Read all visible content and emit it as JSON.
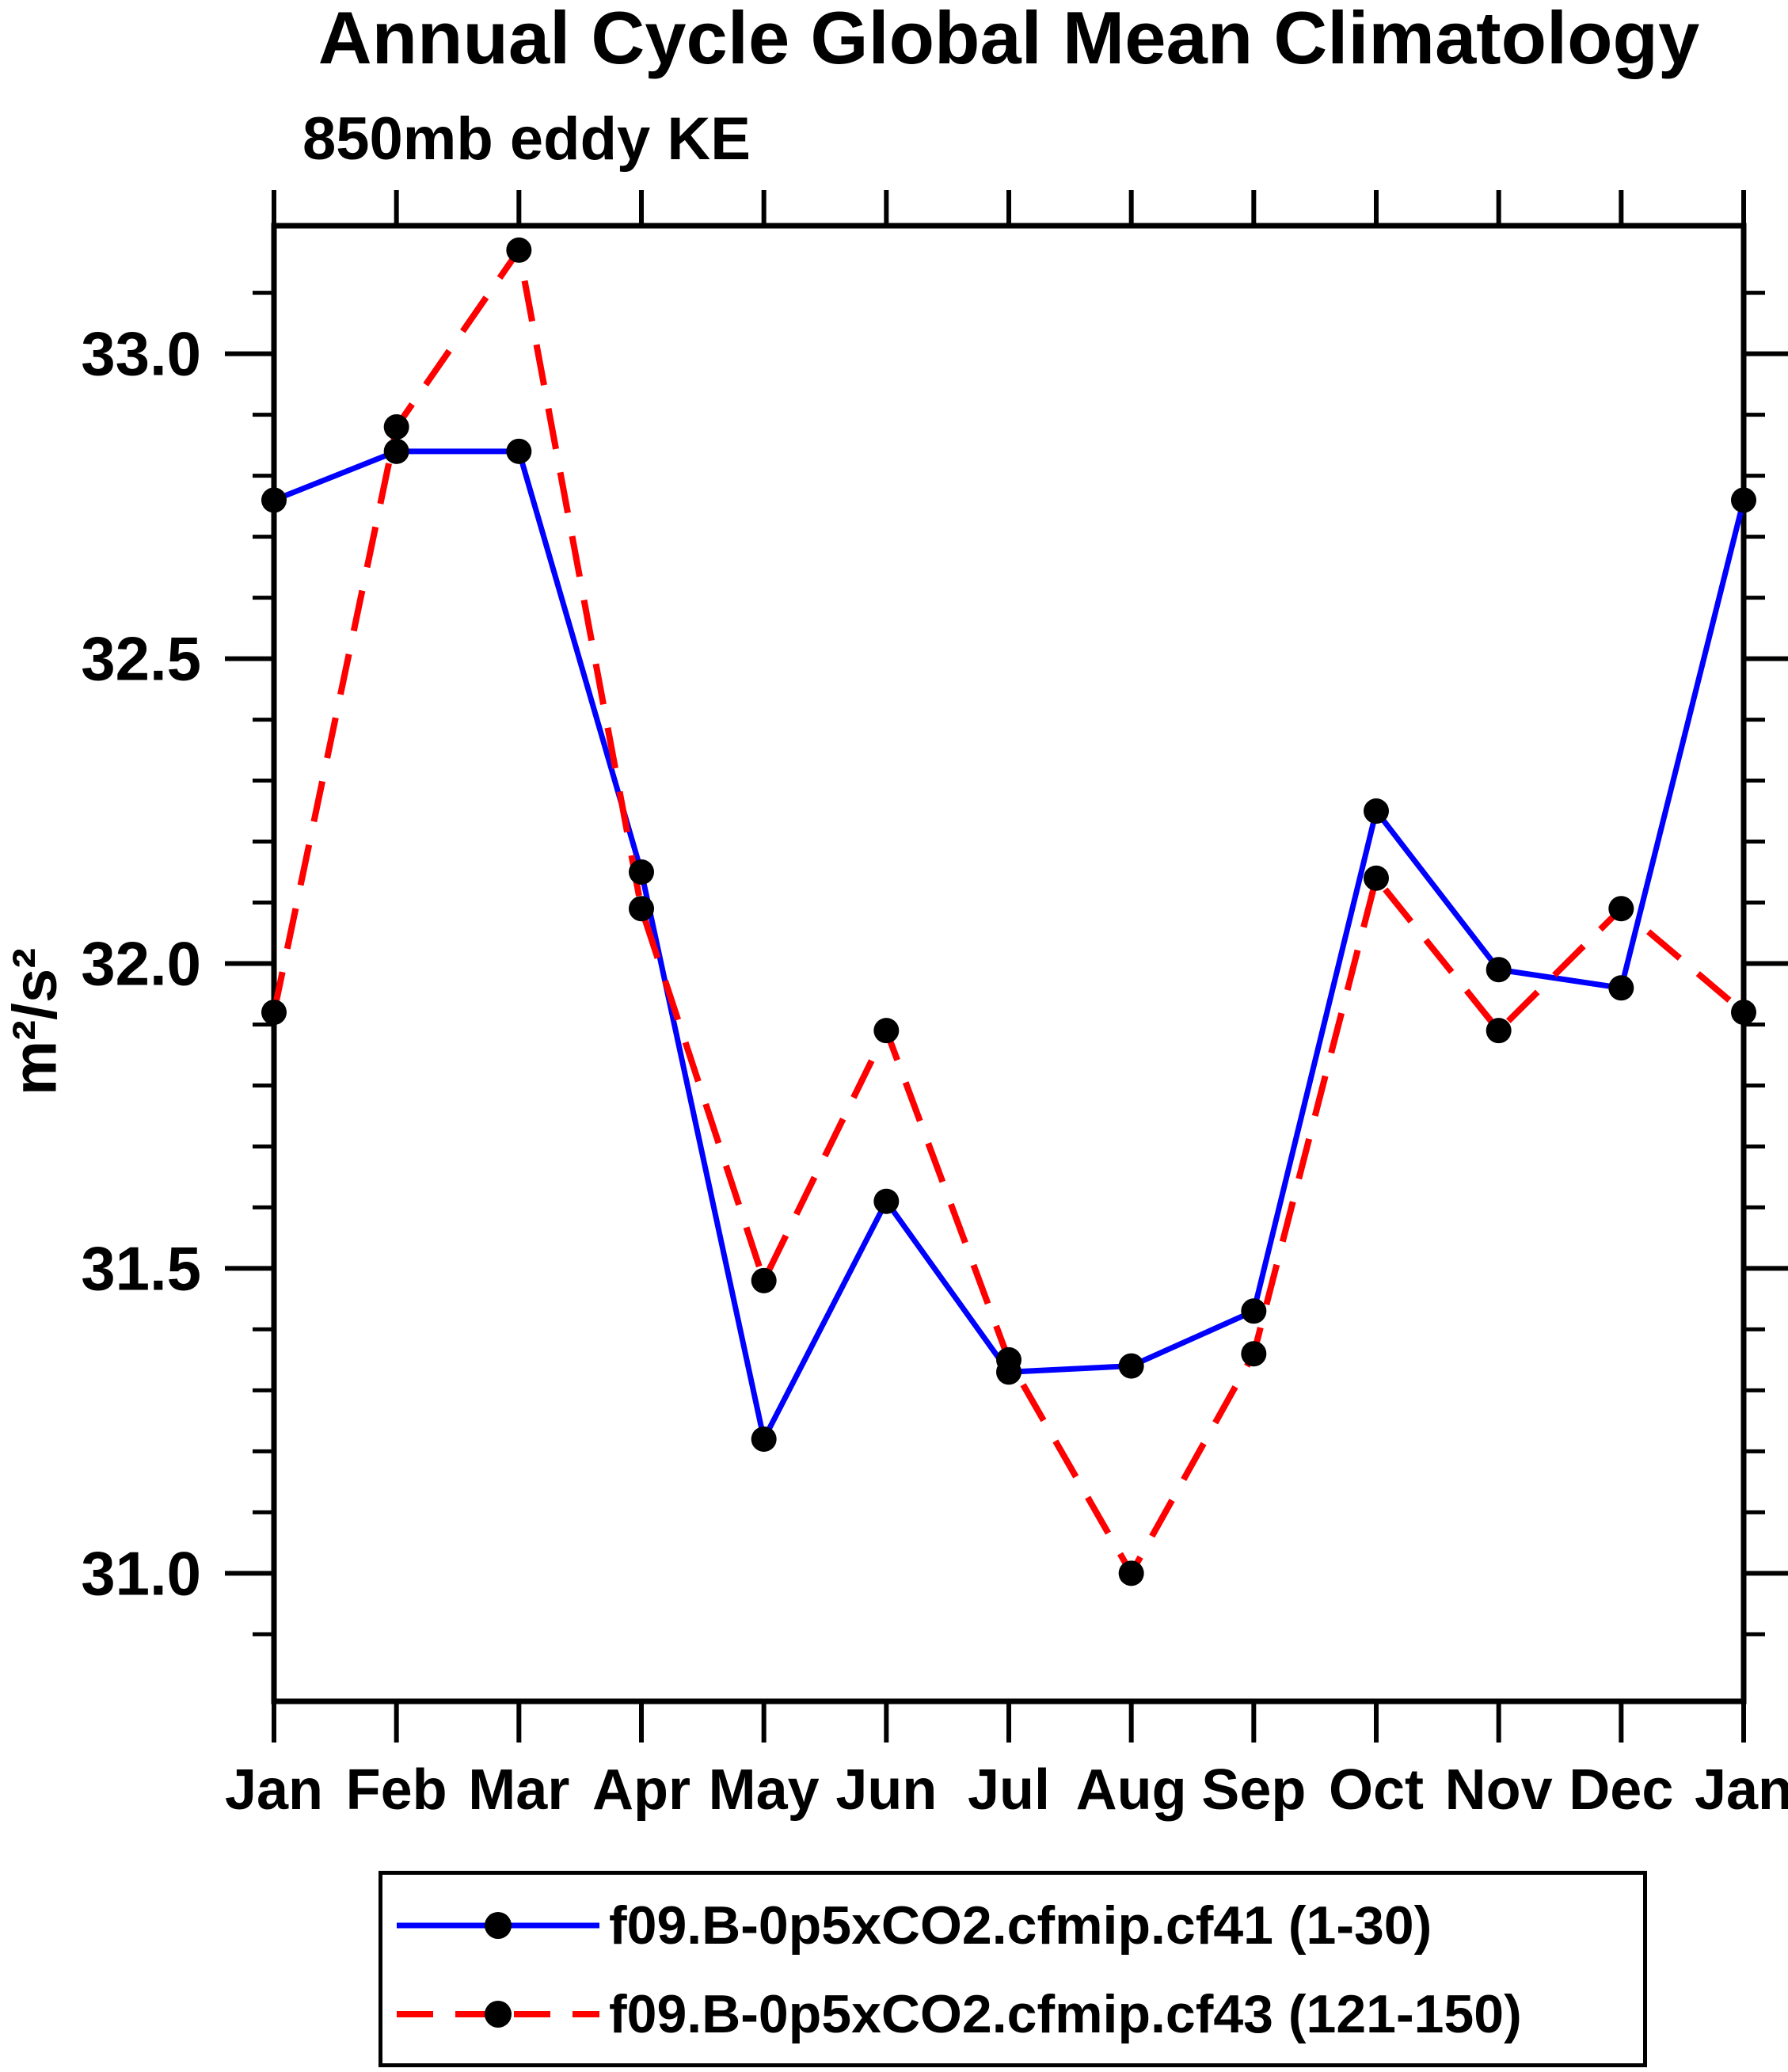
{
  "title": "Annual Cycle Global Mean Climatology",
  "subtitle": "850mb eddy KE",
  "ylabel": "m²/s²",
  "colors": {
    "series1": "#0000ff",
    "series2": "#ff0000",
    "marker": "#000000",
    "axis": "#000000"
  },
  "legend": {
    "position": "bottom",
    "entries": [
      {
        "label": "f09.B-0p5xCO2.cfmip.cf41 (1-30)",
        "color": "#0000ff",
        "style": "solid"
      },
      {
        "label": "f09.B-0p5xCO2.cfmip.cf43 (121-150)",
        "color": "#ff0000",
        "style": "dashed"
      }
    ]
  },
  "chart_data": {
    "type": "line",
    "title": "Annual Cycle Global Mean Climatology",
    "subtitle": "850mb eddy KE",
    "xlabel": "",
    "ylabel": "m²/s²",
    "categories": [
      "Jan",
      "Feb",
      "Mar",
      "Apr",
      "May",
      "Jun",
      "Jul",
      "Aug",
      "Sep",
      "Oct",
      "Nov",
      "Dec",
      "Jan"
    ],
    "series": [
      {
        "name": "f09.B-0p5xCO2.cfmip.cf41 (1-30)",
        "color": "#0000ff",
        "style": "solid",
        "marker": "circle",
        "values": [
          32.76,
          32.84,
          32.84,
          32.15,
          31.22,
          31.61,
          31.33,
          31.34,
          31.43,
          32.25,
          31.99,
          31.96,
          32.76
        ]
      },
      {
        "name": "f09.B-0p5xCO2.cfmip.cf43 (121-150)",
        "color": "#ff0000",
        "style": "dashed",
        "marker": "circle",
        "values": [
          31.92,
          32.88,
          33.17,
          32.09,
          31.48,
          31.89,
          31.35,
          31.0,
          31.36,
          32.14,
          31.89,
          32.09,
          31.92
        ]
      }
    ],
    "ylim": [
      30.79,
      33.21
    ],
    "y_major_ticks": [
      33.0,
      32.5,
      32.0,
      31.5,
      31.0
    ],
    "y_tick_labels": [
      "33.0",
      "32.5",
      "32.0",
      "31.5",
      "31.0"
    ],
    "y_minor_step": 0.1,
    "grid": "off",
    "legend_position": "bottom"
  }
}
